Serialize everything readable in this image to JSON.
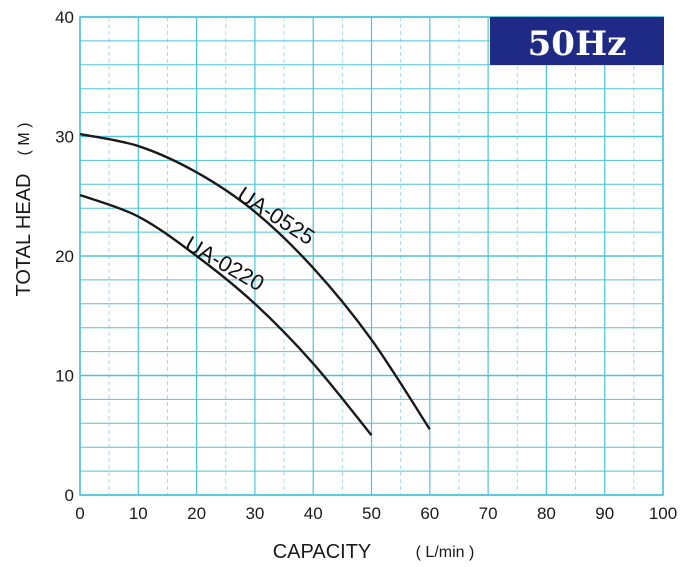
{
  "colors": {
    "grid": "#4fc3d9",
    "grid_minor": "#9fdbe8",
    "curve": "#1a1a1a",
    "badge_bg": "#1f2a86",
    "badge_text": "#ffffff"
  },
  "chart_data": {
    "type": "line",
    "badge": "50Hz",
    "xlabel": "CAPACITY",
    "xunit": "( L/min )",
    "ylabel": "TOTAL HEAD",
    "yunit": "( M )",
    "xlim": [
      0,
      100
    ],
    "ylim": [
      0,
      40
    ],
    "xticks": [
      0,
      10,
      20,
      30,
      40,
      50,
      60,
      70,
      80,
      90,
      100
    ],
    "yticks": [
      0,
      10,
      20,
      30,
      40
    ],
    "grid": true,
    "series": [
      {
        "name": "UA-0525",
        "x": [
          0,
          10,
          20,
          30,
          40,
          50,
          60
        ],
        "y": [
          30.2,
          29.2,
          27.0,
          23.7,
          19.0,
          13.0,
          5.5
        ]
      },
      {
        "name": "UA-0220",
        "x": [
          0,
          10,
          20,
          30,
          40,
          50
        ],
        "y": [
          25.1,
          23.3,
          20.0,
          16.0,
          11.0,
          5.0
        ]
      }
    ]
  }
}
